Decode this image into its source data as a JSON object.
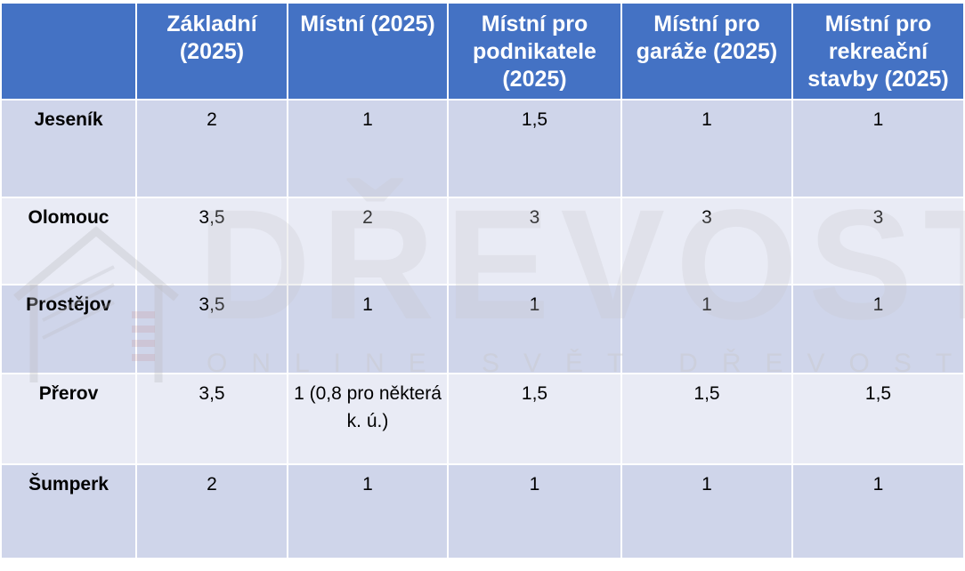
{
  "table": {
    "columns": [
      "",
      "Základní (2025)",
      "Místní (2025)",
      "Místní pro podnikatele (2025)",
      "Místní pro garáže (2025)",
      "Místní pro rekreační stavby (2025)"
    ],
    "rows": [
      [
        "Jeseník",
        "2",
        "1",
        "1,5",
        "1",
        "1"
      ],
      [
        "Olomouc",
        "3,5",
        "2",
        "3",
        "3",
        "3"
      ],
      [
        "Prostějov",
        "3,5",
        "1",
        "1",
        "1",
        "1"
      ],
      [
        "Přerov",
        "3,5",
        "1 (0,8 pro některá k. ú.)",
        "1,5",
        "1,5",
        "1,5"
      ],
      [
        "Šumperk",
        "2",
        "1",
        "1",
        "1",
        "1"
      ]
    ]
  },
  "watermark": {
    "brand": "DŘEVOSTAVITEL",
    "tagline": "ONLINE SVĚT DŘEVOSTAVEB"
  },
  "colors": {
    "header_bg": "#4472c4",
    "row_odd_bg": "#cfd5ea",
    "row_even_bg": "#e9ebf5"
  }
}
